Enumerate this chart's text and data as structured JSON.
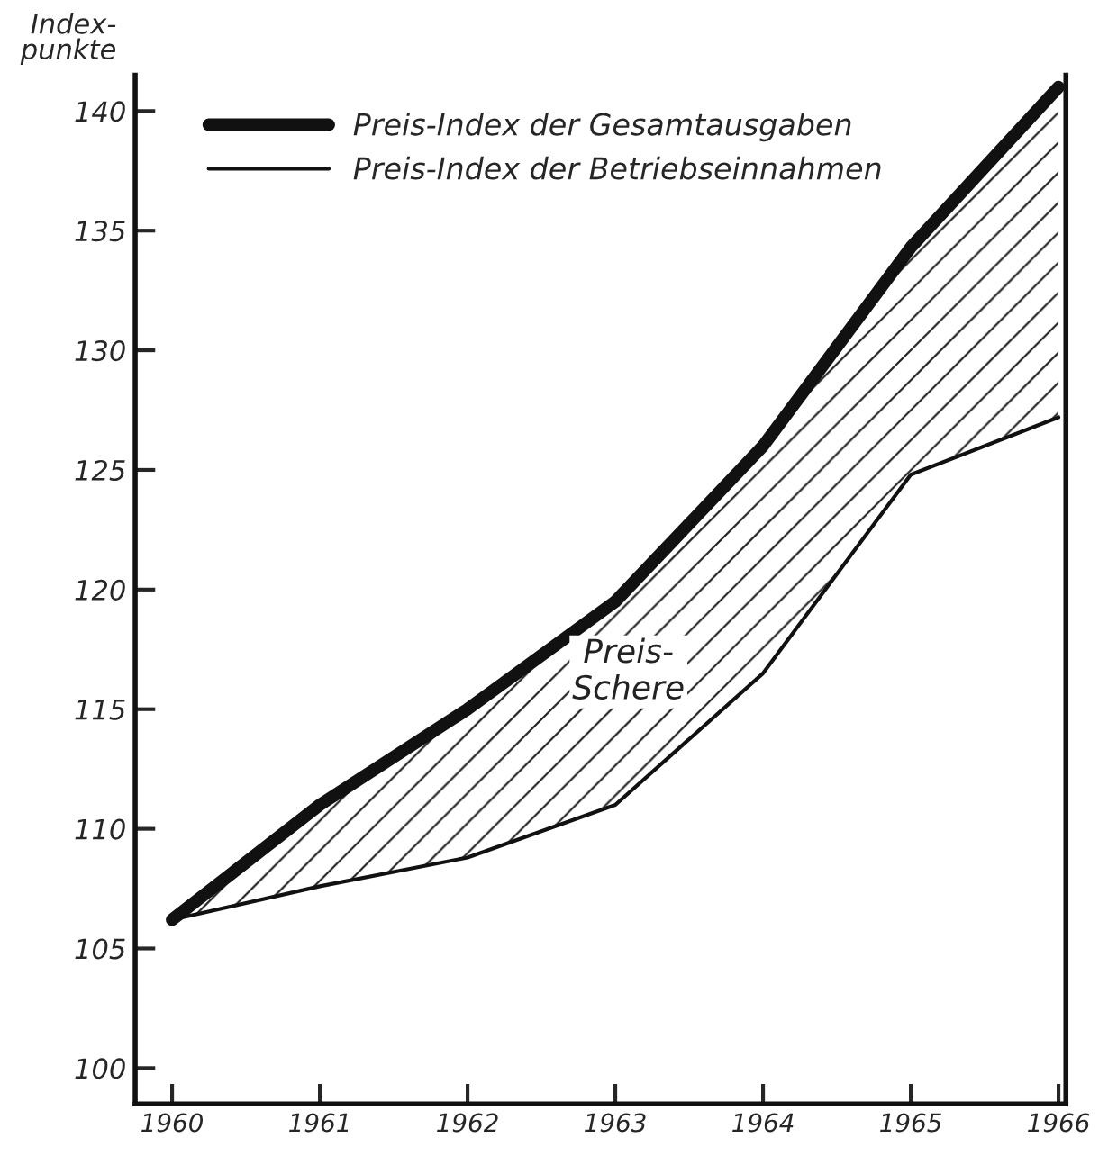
{
  "chart_data": {
    "type": "line",
    "ylabel": "Index-\npunkte",
    "x": [
      1960,
      1961,
      1962,
      1963,
      1964,
      1965,
      1966
    ],
    "series": [
      {
        "name": "Preis-Index der Gesamtausgaben",
        "color": "#111111",
        "values": [
          106.2,
          111,
          115,
          119.5,
          126,
          134.3,
          141
        ],
        "lower": [
          106.2,
          107.6,
          108.8,
          111,
          116.5,
          124.8,
          127.2
        ],
        "upper": [
          106.2,
          111,
          115,
          119.5,
          126,
          134.3,
          141
        ]
      },
      {
        "name": "Preis-Index der Betriebseinnahmen",
        "color": "#111111",
        "values": [
          106.2,
          107.6,
          108.8,
          111,
          116.5,
          124.8,
          127.2
        ]
      }
    ],
    "annotations": [
      "Preis-\nSchere"
    ],
    "xlim": [
      1959.75,
      1966.05
    ],
    "xticks": [
      1960,
      1961,
      1962,
      1963,
      1964,
      1965,
      1966
    ],
    "ylim": [
      98.5,
      141.5
    ],
    "yticks": [
      100,
      105,
      110,
      115,
      120,
      125,
      130,
      135,
      140
    ],
    "grid": false,
    "legend": "top left",
    "marker": "none",
    "line_style": "solid"
  }
}
